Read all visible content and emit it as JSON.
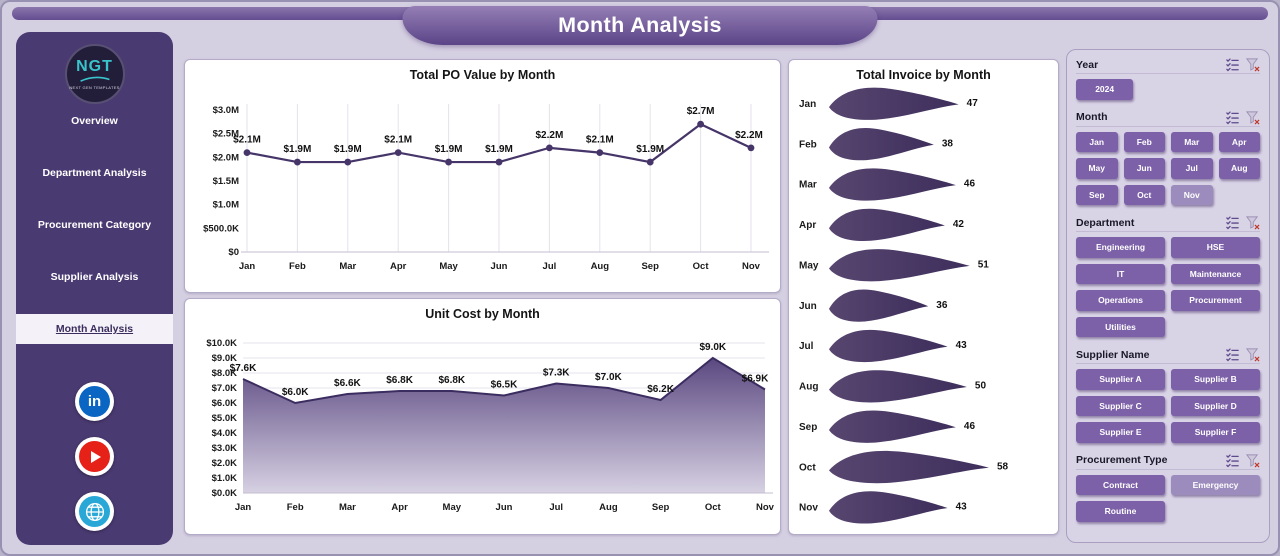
{
  "header": {
    "title": "Month Analysis"
  },
  "theme": {
    "accent_purple": "#7c60a8",
    "unselected_purple": "#9c8cbd",
    "sidebar_purple": "#4a3a72",
    "banner_purple": "#5b4487",
    "chart_line": "#463569",
    "ribbon_fill": "#4a3969",
    "area_top": "#5a4880",
    "area_bottom": "#d7d1e3",
    "linkedin_blue": "#0a66c2",
    "youtube_red": "#e62117",
    "globe_teal": "#29a8d8",
    "logo_teal": "#38c4cb"
  },
  "sidebar": {
    "logo_text": "NGT",
    "logo_subtext": "NEXT GEN TEMPLATES",
    "items": [
      {
        "label": "Overview",
        "active": false
      },
      {
        "label": "Department Analysis",
        "active": false
      },
      {
        "label": "Procurement Category",
        "active": false
      },
      {
        "label": "Supplier Analysis",
        "active": false
      },
      {
        "label": "Month Analysis",
        "active": true
      }
    ],
    "social": [
      {
        "name": "linkedin",
        "color": "#0a66c2"
      },
      {
        "name": "youtube",
        "color": "#e62117"
      },
      {
        "name": "website",
        "color": "#29a8d8"
      }
    ]
  },
  "slicers": [
    {
      "title": "Year",
      "columns": 3,
      "options": [
        {
          "label": "2024",
          "selected": true
        }
      ]
    },
    {
      "title": "Month",
      "columns": 4,
      "options": [
        {
          "label": "Jan",
          "selected": true
        },
        {
          "label": "Feb",
          "selected": true
        },
        {
          "label": "Mar",
          "selected": true
        },
        {
          "label": "Apr",
          "selected": true
        },
        {
          "label": "May",
          "selected": true
        },
        {
          "label": "Jun",
          "selected": true
        },
        {
          "label": "Jul",
          "selected": true
        },
        {
          "label": "Aug",
          "selected": true
        },
        {
          "label": "Sep",
          "selected": true
        },
        {
          "label": "Oct",
          "selected": true
        },
        {
          "label": "Nov",
          "selected": false
        }
      ]
    },
    {
      "title": "Department",
      "columns": 2,
      "options": [
        {
          "label": "Engineering",
          "selected": true
        },
        {
          "label": "HSE",
          "selected": true
        },
        {
          "label": "IT",
          "selected": true
        },
        {
          "label": "Maintenance",
          "selected": true
        },
        {
          "label": "Operations",
          "selected": true
        },
        {
          "label": "Procurement",
          "selected": true
        },
        {
          "label": "Utilities",
          "selected": true
        }
      ]
    },
    {
      "title": "Supplier Name",
      "columns": 2,
      "options": [
        {
          "label": "Supplier A",
          "selected": true
        },
        {
          "label": "Supplier B",
          "selected": true
        },
        {
          "label": "Supplier C",
          "selected": true
        },
        {
          "label": "Supplier D",
          "selected": true
        },
        {
          "label": "Supplier E",
          "selected": true
        },
        {
          "label": "Supplier F",
          "selected": true
        }
      ]
    },
    {
      "title": "Procurement Type",
      "columns": 2,
      "options": [
        {
          "label": "Contract",
          "selected": true
        },
        {
          "label": "Emergency",
          "selected": false
        },
        {
          "label": "Routine",
          "selected": true
        }
      ]
    }
  ],
  "chart_data": [
    {
      "type": "line",
      "title": "Total PO Value by Month",
      "categories": [
        "Jan",
        "Feb",
        "Mar",
        "Apr",
        "May",
        "Jun",
        "Jul",
        "Aug",
        "Sep",
        "Oct",
        "Nov"
      ],
      "values": [
        2.1,
        1.9,
        1.9,
        2.1,
        1.9,
        1.9,
        2.2,
        2.1,
        1.9,
        2.7,
        2.2
      ],
      "point_labels": [
        "$2.1M",
        "$1.9M",
        "$1.9M",
        "$2.1M",
        "$1.9M",
        "$1.9M",
        "$2.2M",
        "$2.1M",
        "$1.9M",
        "$2.7M",
        "$2.2M"
      ],
      "y_tick_labels": [
        "$0",
        "$500.0K",
        "$1.0M",
        "$1.5M",
        "$2.0M",
        "$2.5M",
        "$3.0M"
      ],
      "ylim": [
        0,
        3
      ],
      "unit": "millions USD",
      "grid": "vertical",
      "legend": false
    },
    {
      "type": "area",
      "title": "Unit Cost by Month",
      "categories": [
        "Jan",
        "Feb",
        "Mar",
        "Apr",
        "May",
        "Jun",
        "Jul",
        "Aug",
        "Sep",
        "Oct",
        "Nov"
      ],
      "values": [
        7.6,
        6.0,
        6.6,
        6.8,
        6.8,
        6.5,
        7.3,
        7.0,
        6.2,
        9.0,
        6.9
      ],
      "point_labels": [
        "$7.6K",
        "$6.0K",
        "$6.6K",
        "$6.8K",
        "$6.8K",
        "$6.5K",
        "$7.3K",
        "$7.0K",
        "$6.2K",
        "$9.0K",
        "$6.9K"
      ],
      "y_tick_labels": [
        "$0.0K",
        "$1.0K",
        "$2.0K",
        "$3.0K",
        "$4.0K",
        "$5.0K",
        "$6.0K",
        "$7.0K",
        "$8.0K",
        "$9.0K",
        "$10.0K"
      ],
      "ylim": [
        0,
        10
      ],
      "unit": "thousands USD",
      "grid": "horizontal",
      "legend": false
    },
    {
      "type": "ribbon",
      "title": "Total Invoice by Month",
      "categories": [
        "Jan",
        "Feb",
        "Mar",
        "Apr",
        "May",
        "Jun",
        "Jul",
        "Aug",
        "Sep",
        "Oct",
        "Nov"
      ],
      "values": [
        47,
        38,
        46,
        42,
        51,
        36,
        43,
        50,
        46,
        58,
        43
      ],
      "xmax": 58,
      "legend": false
    }
  ]
}
